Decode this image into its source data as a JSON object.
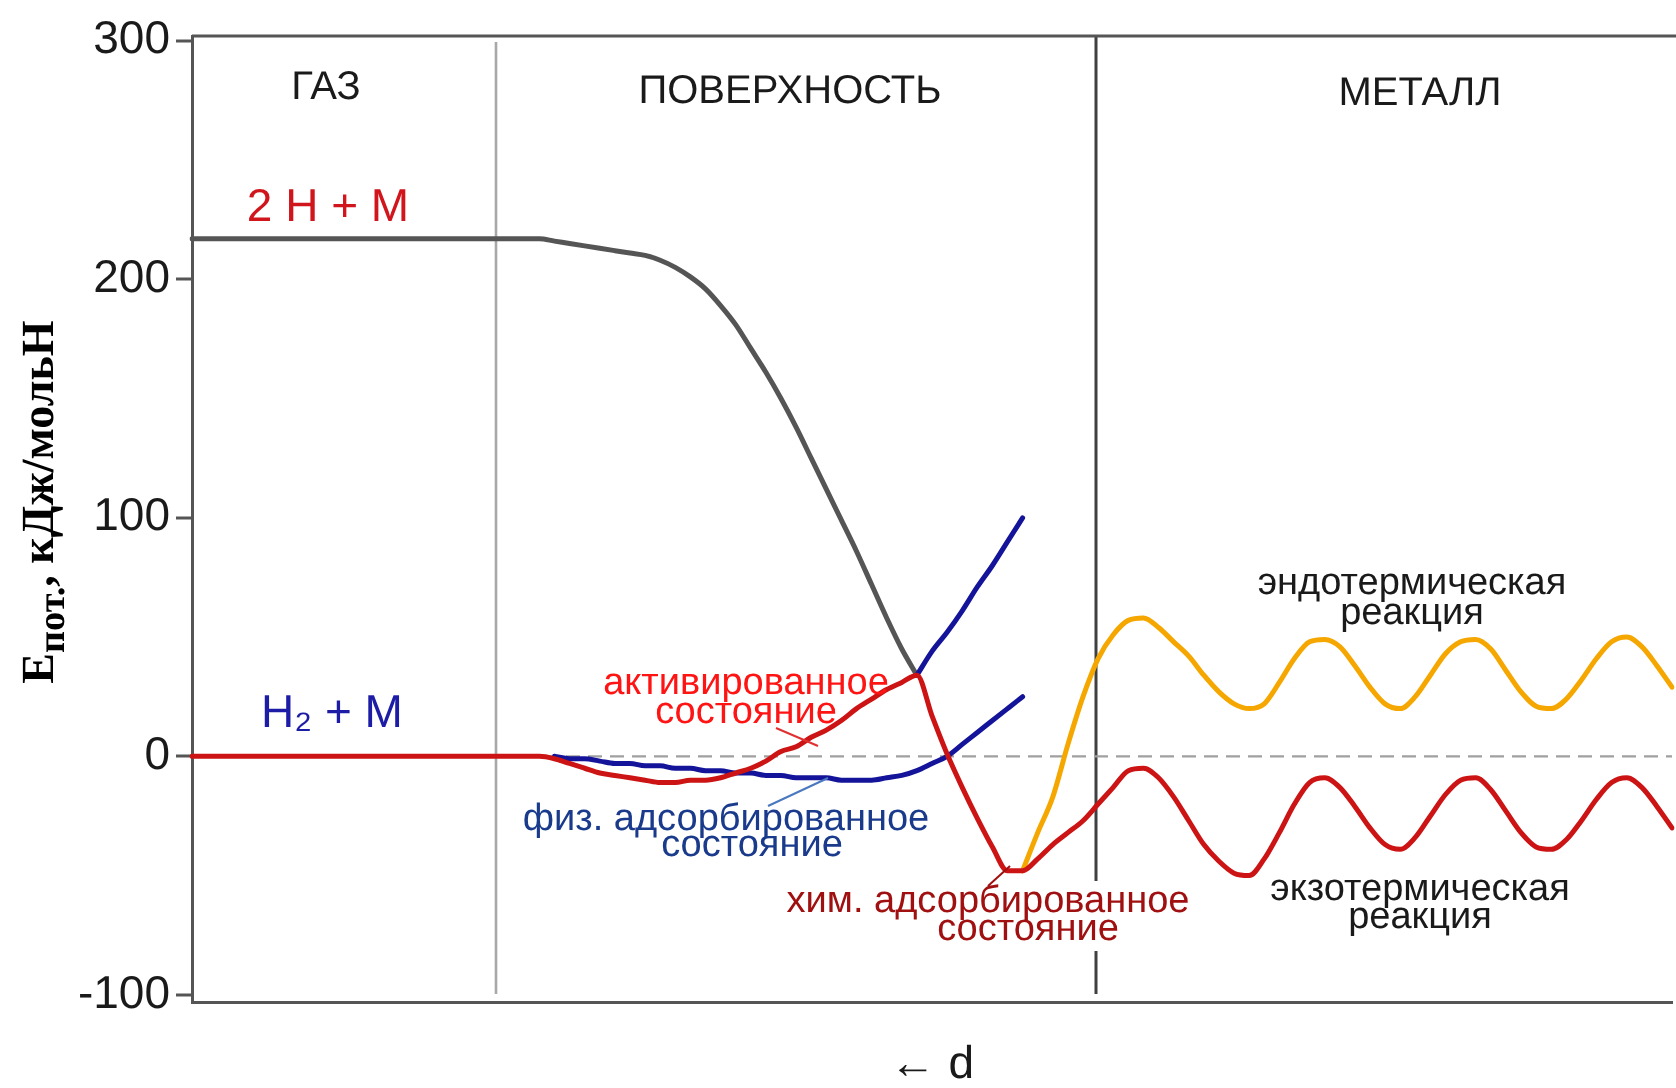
{
  "chart_data": {
    "type": "line",
    "xlabel": "← d",
    "ylabel": "E$_{пот.}$, кДж/мольН",
    "categories": [
      null,
      null,
      null,
      null,
      null,
      null,
      null,
      null,
      null,
      null,
      null,
      null,
      null,
      null,
      null,
      null,
      null,
      null,
      null,
      null,
      null,
      null,
      null,
      null,
      null,
      null,
      null,
      null,
      null,
      null,
      null,
      null,
      null,
      null,
      null,
      null,
      null,
      null,
      null,
      null,
      null,
      null,
      null,
      null,
      null,
      null,
      null,
      null,
      null,
      null,
      null,
      null,
      null,
      null,
      null,
      null,
      null,
      null,
      null,
      null,
      null,
      null,
      null,
      null,
      null,
      null,
      null,
      null,
      null,
      null,
      null,
      null,
      null,
      null,
      null,
      null,
      null,
      null,
      null,
      null,
      null,
      null,
      null,
      null,
      null,
      null,
      null,
      null,
      null,
      null,
      null,
      null,
      null,
      null,
      null,
      null,
      null,
      null,
      null
    ],
    "series": [
      {
        "color": "#cc1414",
        "values": [
          0,
          0,
          0,
          0,
          0,
          0,
          0,
          0,
          0,
          0,
          0,
          0,
          0,
          0,
          0,
          0,
          0,
          0,
          0,
          0,
          0,
          0,
          0,
          0,
          -1,
          -3,
          -5,
          -7,
          -8,
          -9,
          -10,
          -11,
          -11,
          -10,
          -10,
          -9,
          -7,
          -5,
          -2,
          2,
          4,
          8,
          11,
          15,
          20,
          24,
          28,
          31,
          34,
          17,
          1,
          -13,
          -26,
          -38,
          -48,
          -48,
          -43,
          -37,
          -32,
          -27,
          -20,
          -13,
          -6,
          -5,
          -9,
          -17,
          -27,
          -37,
          -44,
          -49,
          -50,
          -43,
          -32,
          -20,
          -11,
          -9,
          -13,
          -21,
          -30,
          -37,
          -39,
          -34,
          -25,
          -16,
          -10,
          -9,
          -14,
          -23,
          -32,
          -38,
          -39,
          -35,
          -27,
          -18,
          -11,
          -9,
          -13,
          -21,
          -30
        ]
      },
      {
        "color": "#14149a",
        "values": [
          null,
          null,
          null,
          null,
          null,
          null,
          null,
          null,
          null,
          null,
          null,
          null,
          null,
          null,
          null,
          null,
          null,
          null,
          null,
          null,
          null,
          null,
          null,
          null,
          0,
          -1,
          -1,
          -2,
          -3,
          -3,
          -4,
          -4,
          -5,
          -5,
          -6,
          -6,
          -7,
          -7,
          -8,
          -8,
          -9,
          -9,
          -9,
          -10,
          -10,
          -10,
          -9,
          -8,
          -6,
          -3,
          0,
          5,
          10,
          15,
          20,
          25,
          null,
          null,
          null,
          null,
          null,
          null,
          null,
          null,
          null,
          null,
          null,
          null,
          null,
          null,
          null,
          null,
          null,
          null,
          null,
          null,
          null,
          null,
          null,
          null,
          null,
          null,
          null,
          null,
          null,
          null,
          null,
          null,
          null,
          null,
          null,
          null,
          null,
          null,
          null,
          null,
          null,
          null,
          null
        ]
      },
      {
        "color": "#14149a",
        "values": [
          null,
          null,
          null,
          null,
          null,
          null,
          null,
          null,
          null,
          null,
          null,
          null,
          null,
          null,
          null,
          null,
          null,
          null,
          null,
          null,
          null,
          null,
          null,
          null,
          null,
          null,
          null,
          null,
          null,
          null,
          null,
          null,
          null,
          null,
          null,
          null,
          null,
          null,
          null,
          null,
          null,
          null,
          null,
          null,
          null,
          null,
          null,
          null,
          34,
          44,
          52,
          61,
          71,
          80,
          90,
          100,
          null,
          null,
          null,
          null,
          null,
          null,
          null,
          null,
          null,
          null,
          null,
          null,
          null,
          null,
          null,
          null,
          null,
          null,
          null,
          null,
          null,
          null,
          null,
          null,
          null,
          null,
          null,
          null,
          null,
          null,
          null,
          null,
          null,
          null,
          null,
          null,
          null,
          null,
          null,
          null,
          null,
          null,
          null
        ]
      },
      {
        "color": "#f5a700",
        "values": [
          null,
          null,
          null,
          null,
          null,
          null,
          null,
          null,
          null,
          null,
          null,
          null,
          null,
          null,
          null,
          null,
          null,
          null,
          null,
          null,
          null,
          null,
          null,
          null,
          null,
          null,
          null,
          null,
          null,
          null,
          null,
          null,
          null,
          null,
          null,
          null,
          null,
          null,
          null,
          null,
          null,
          null,
          null,
          null,
          null,
          null,
          null,
          null,
          null,
          null,
          null,
          null,
          null,
          null,
          null,
          -48,
          -32,
          -17,
          5,
          25,
          41,
          51,
          57,
          58,
          54,
          48,
          42,
          34,
          27,
          22,
          20,
          22,
          31,
          41,
          48,
          49,
          46,
          38,
          29,
          22,
          20,
          25,
          34,
          43,
          48,
          49,
          45,
          36,
          27,
          21,
          20,
          24,
          32,
          41,
          48,
          50,
          46,
          38,
          29
        ]
      },
      {
        "color": "#555555",
        "values": [
          217,
          217,
          217,
          217,
          217,
          217,
          217,
          217,
          217,
          217,
          217,
          217,
          217,
          217,
          217,
          217,
          217,
          217,
          217,
          217,
          217,
          217,
          217,
          217,
          216,
          215,
          214,
          213,
          212,
          211,
          210,
          208,
          205,
          201,
          196,
          189,
          181,
          171,
          161,
          150,
          138,
          125,
          112,
          99,
          86,
          72,
          58,
          45,
          34,
          null,
          null,
          null,
          null,
          null,
          null,
          null,
          null,
          null,
          null,
          null,
          null,
          null,
          null,
          null,
          null,
          null,
          null,
          null,
          null,
          null,
          null,
          null,
          null,
          null,
          null,
          null,
          null,
          null,
          null,
          null,
          null,
          null,
          null,
          null,
          null,
          null,
          null,
          null,
          null,
          null,
          null,
          null,
          null,
          null,
          null,
          null,
          null,
          null,
          null
        ]
      }
    ],
    "ylim": [
      -103,
      302
    ],
    "yticks": [
      -100,
      0,
      100,
      200,
      300
    ],
    "tick_labels": "y",
    "ref_lines": [
      {
        "axis": "y",
        "value": 0,
        "color": "#a0a0a0",
        "line_style": "dashed"
      }
    ],
    "annotations": [
      "ГАЗ",
      "ПОВЕРХНОСТЬ",
      "МЕТАЛЛ",
      "2 H + M",
      "H₂ + M",
      "активированное\nсостояние",
      "физ. адсорбированное\nсостояние",
      "хим. адсорбированное\nсостояние",
      "эндотермическая\nреакция",
      "экзотермическая\nреакция"
    ]
  }
}
